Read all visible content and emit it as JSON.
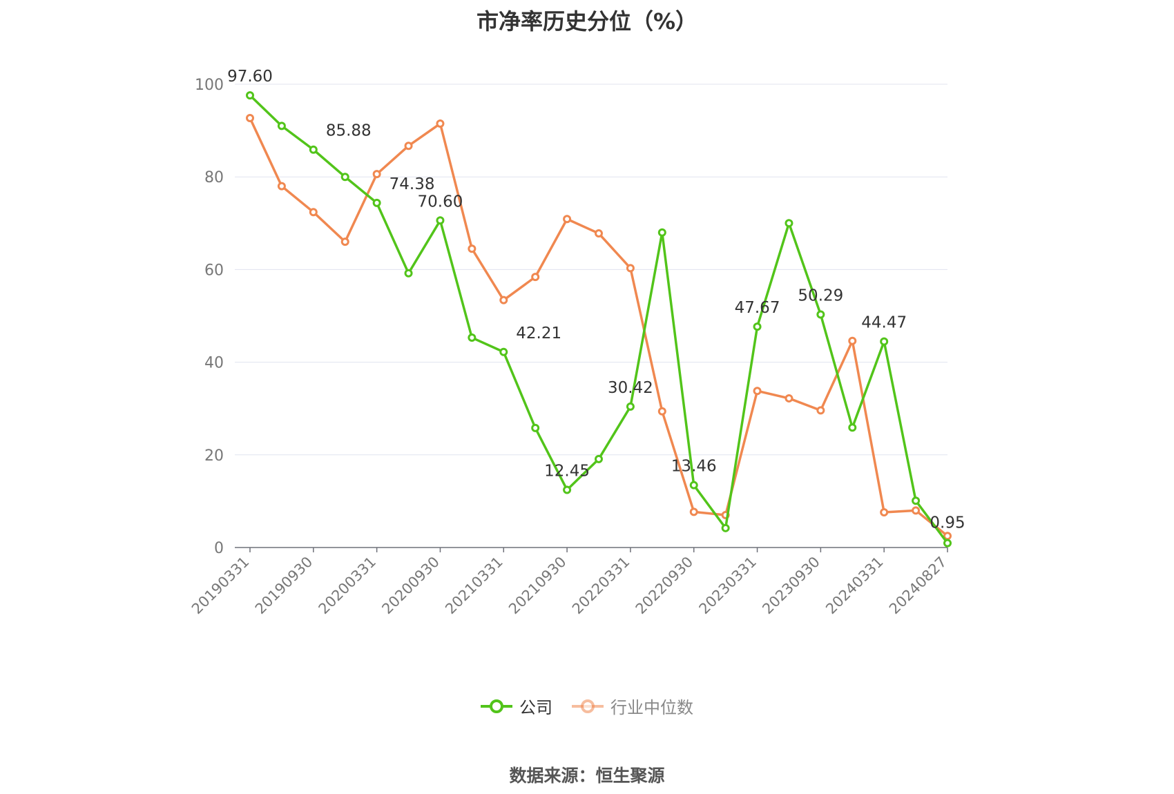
{
  "chart_data": {
    "type": "line",
    "title": "市净率历史分位（%）",
    "xlabel": "",
    "ylabel": "",
    "ylim": [
      0,
      100
    ],
    "y_ticks": [
      0,
      20,
      40,
      60,
      80,
      100
    ],
    "x": [
      "20190331",
      "20190630",
      "20190930",
      "20191231",
      "20200331",
      "20200630",
      "20200930",
      "20201231",
      "20210331",
      "20210630",
      "20210930",
      "20211231",
      "20220331",
      "20220630",
      "20220930",
      "20221231",
      "20230331",
      "20230630",
      "20230930",
      "20231231",
      "20240331",
      "20240630",
      "20240827"
    ],
    "x_tick_labels": [
      "20190331",
      "20190930",
      "20200331",
      "20200930",
      "20210331",
      "20210930",
      "20220331",
      "20220930",
      "20230331",
      "20230930",
      "20240331",
      "20240827"
    ],
    "grid": true,
    "legend_position": "bottom",
    "series": [
      {
        "name": "公司",
        "color": "#52c41a",
        "values": [
          97.6,
          91.0,
          85.88,
          80.0,
          74.38,
          59.2,
          70.6,
          45.3,
          42.21,
          25.8,
          12.45,
          19.1,
          30.42,
          68.0,
          13.46,
          4.2,
          47.67,
          70.0,
          50.29,
          25.9,
          44.47,
          10.1,
          0.95
        ],
        "data_labels": [
          "97.60",
          "",
          "85.88",
          "",
          "74.38",
          "",
          "70.60",
          "",
          "42.21",
          "",
          "12.45",
          "",
          "30.42",
          "",
          "13.46",
          "",
          "47.67",
          "",
          "50.29",
          "",
          "44.47",
          "",
          "0.95"
        ]
      },
      {
        "name": "行业中位数",
        "color": "#f08850",
        "values": [
          92.7,
          78.0,
          72.4,
          66.0,
          80.6,
          86.7,
          91.5,
          64.5,
          53.4,
          58.4,
          70.9,
          67.8,
          60.3,
          29.4,
          7.7,
          7.0,
          33.8,
          32.2,
          29.6,
          44.6,
          7.6,
          8.0,
          2.5
        ]
      }
    ]
  },
  "source": "数据来源：恒生聚源"
}
